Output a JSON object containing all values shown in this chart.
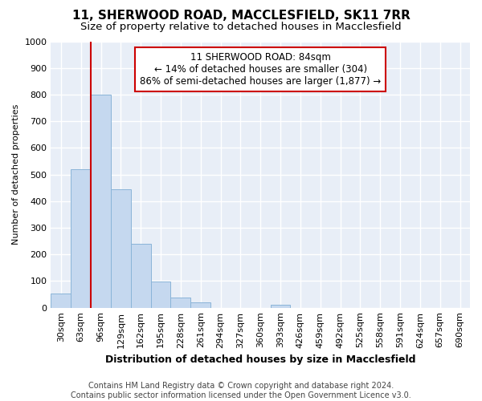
{
  "title": "11, SHERWOOD ROAD, MACCLESFIELD, SK11 7RR",
  "subtitle": "Size of property relative to detached houses in Macclesfield",
  "xlabel": "Distribution of detached houses by size in Macclesfield",
  "ylabel": "Number of detached properties",
  "bin_labels": [
    "30sqm",
    "63sqm",
    "96sqm",
    "129sqm",
    "162sqm",
    "195sqm",
    "228sqm",
    "261sqm",
    "294sqm",
    "327sqm",
    "360sqm",
    "393sqm",
    "426sqm",
    "459sqm",
    "492sqm",
    "525sqm",
    "558sqm",
    "591sqm",
    "624sqm",
    "657sqm",
    "690sqm"
  ],
  "bar_values": [
    52,
    520,
    800,
    445,
    240,
    98,
    37,
    20,
    0,
    0,
    0,
    12,
    0,
    0,
    0,
    0,
    0,
    0,
    0,
    0,
    0
  ],
  "bar_color": "#c5d8ef",
  "bar_edge_color": "#8ab4d8",
  "vline_color": "#cc0000",
  "annotation_text": "11 SHERWOOD ROAD: 84sqm\n← 14% of detached houses are smaller (304)\n86% of semi-detached houses are larger (1,877) →",
  "annotation_box_color": "#ffffff",
  "annotation_box_edge": "#cc0000",
  "ylim": [
    0,
    1000
  ],
  "yticks": [
    0,
    100,
    200,
    300,
    400,
    500,
    600,
    700,
    800,
    900,
    1000
  ],
  "footnote": "Contains HM Land Registry data © Crown copyright and database right 2024.\nContains public sector information licensed under the Open Government Licence v3.0.",
  "fig_bg_color": "#ffffff",
  "plot_bg_color": "#e8eef7",
  "grid_color": "#ffffff",
  "title_fontsize": 11,
  "subtitle_fontsize": 9.5,
  "xlabel_fontsize": 9,
  "ylabel_fontsize": 8,
  "tick_fontsize": 8,
  "footnote_fontsize": 7,
  "annotation_fontsize": 8.5
}
